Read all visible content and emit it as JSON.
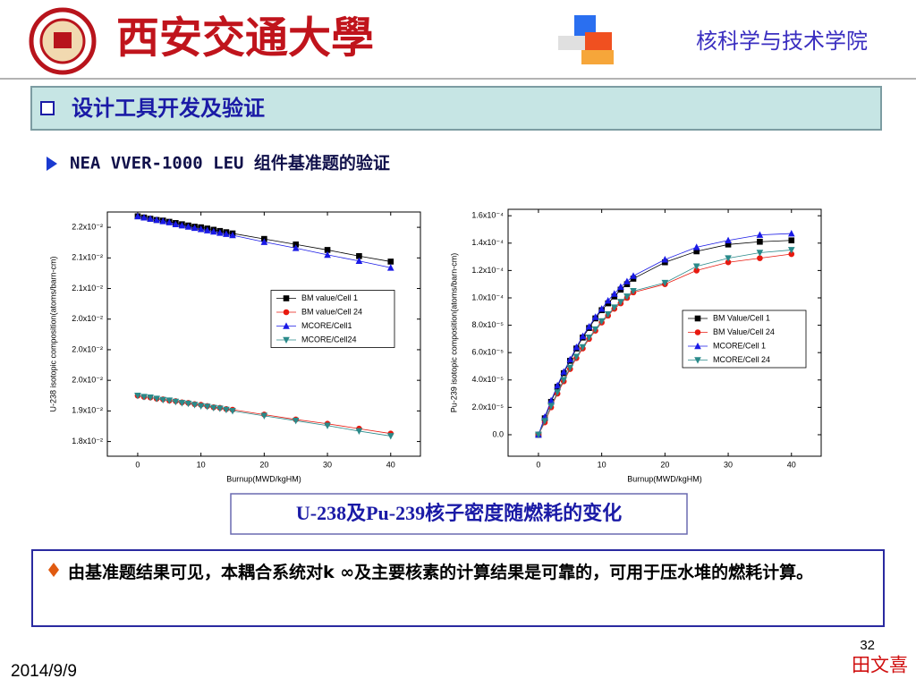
{
  "header": {
    "logo_text": "西安交通大學",
    "school": "核科学与技术学院"
  },
  "section": "设计工具开发及验证",
  "subtitle": "NEA VVER-1000 LEU 组件基准题的验证",
  "chart_data": [
    {
      "type": "line",
      "x_label": "Burnup(MWD/kgHM)",
      "y_label": "U-238 isotopic composition(atoms/barn-cm)",
      "x": [
        0,
        1,
        2,
        3,
        4,
        5,
        6,
        7,
        8,
        9,
        10,
        11,
        12,
        13,
        14,
        15,
        20,
        25,
        30,
        35,
        40
      ],
      "xlim": [
        -4.8,
        44.7
      ],
      "xticks": [
        0,
        10,
        20,
        30,
        40
      ],
      "ylim": [
        0.01826,
        0.02225
      ],
      "yticks": [
        {
          "value": 0.022,
          "label": "2.2x10⁻²"
        },
        {
          "value": 0.0215,
          "label": "2.1x10⁻²"
        },
        {
          "value": 0.021,
          "label": "2.1x10⁻²"
        },
        {
          "value": 0.0205,
          "label": "2.0x10⁻²"
        },
        {
          "value": 0.02,
          "label": "2.0x10⁻²"
        },
        {
          "value": 0.0195,
          "label": "2.0x10⁻²"
        },
        {
          "value": 0.019,
          "label": "1.9x10⁻²"
        },
        {
          "value": 0.0185,
          "label": "1.8x10⁻²"
        }
      ],
      "legend": "center right",
      "series": [
        {
          "name": "BM value/Cell 1",
          "color": "#000000",
          "marker": "square",
          "values": [
            0.02218,
            0.02216,
            0.02214,
            0.02212,
            0.02211,
            0.02209,
            0.02207,
            0.02205,
            0.02203,
            0.02201,
            0.022,
            0.02198,
            0.02196,
            0.02194,
            0.02192,
            0.0219,
            0.02181,
            0.02172,
            0.02163,
            0.02153,
            0.02144
          ]
        },
        {
          "name": "BM value/Cell 24",
          "color": "#e8190f",
          "marker": "circle",
          "values": [
            0.01925,
            0.01923,
            0.01922,
            0.0192,
            0.01919,
            0.01917,
            0.01916,
            0.01914,
            0.01913,
            0.01911,
            0.0191,
            0.01908,
            0.01906,
            0.01905,
            0.01903,
            0.01902,
            0.01894,
            0.01886,
            0.01879,
            0.01871,
            0.01863
          ]
        },
        {
          "name": "MCORE/Cell1",
          "color": "#1a1ae6",
          "marker": "triangle-up",
          "values": [
            0.02218,
            0.02216,
            0.02214,
            0.02212,
            0.0221,
            0.02208,
            0.02205,
            0.02203,
            0.02201,
            0.02199,
            0.02197,
            0.02195,
            0.02193,
            0.02191,
            0.02189,
            0.02187,
            0.02176,
            0.02166,
            0.02155,
            0.02145,
            0.02134
          ]
        },
        {
          "name": "MCORE/Cell24",
          "color": "#2a8a8a",
          "marker": "triangle-down",
          "values": [
            0.01925,
            0.01923,
            0.01922,
            0.0192,
            0.01918,
            0.01917,
            0.01915,
            0.01913,
            0.01912,
            0.0191,
            0.01908,
            0.01907,
            0.01905,
            0.01904,
            0.01902,
            0.019,
            0.01892,
            0.01884,
            0.01876,
            0.01867,
            0.01859
          ]
        }
      ]
    },
    {
      "type": "line",
      "x_label": "Burnup(MWD/kgHM)",
      "y_label": "Pu-239 isotopic composition(atoms/barn-cm)",
      "x": [
        0,
        1,
        2,
        3,
        4,
        5,
        6,
        7,
        8,
        9,
        10,
        11,
        12,
        13,
        14,
        15,
        20,
        25,
        30,
        35,
        40
      ],
      "xlim": [
        -4.8,
        44.7
      ],
      "xticks": [
        0,
        10,
        20,
        30,
        40
      ],
      "ylim": [
        -1.57e-05,
        0.0001647
      ],
      "yticks": [
        {
          "value": 0,
          "label": "0.0"
        },
        {
          "value": 2e-05,
          "label": "2.0x10⁻⁵"
        },
        {
          "value": 4e-05,
          "label": "4.0x10⁻⁵"
        },
        {
          "value": 6e-05,
          "label": "6.0x10⁻⁵"
        },
        {
          "value": 8e-05,
          "label": "8.0x10⁻⁵"
        },
        {
          "value": 0.0001,
          "label": "1.0x10⁻⁴"
        },
        {
          "value": 0.00012,
          "label": "1.2x10⁻⁴"
        },
        {
          "value": 0.00014,
          "label": "1.4x10⁻⁴"
        },
        {
          "value": 0.00016,
          "label": "1.6x10⁻⁴"
        }
      ],
      "legend": "lower right",
      "series": [
        {
          "name": "BM Value/Cell 1",
          "color": "#000000",
          "marker": "square",
          "values": [
            0,
            1.2e-05,
            2.4e-05,
            3.5e-05,
            4.5e-05,
            5.4e-05,
            6.3e-05,
            7.1e-05,
            7.8e-05,
            8.5e-05,
            9.1e-05,
            9.6e-05,
            0.000101,
            0.000106,
            0.00011,
            0.000114,
            0.000126,
            0.000134,
            0.000139,
            0.000141,
            0.000142
          ]
        },
        {
          "name": "BM Value/Cell 24",
          "color": "#e8190f",
          "marker": "circle",
          "values": [
            0,
            9e-06,
            2e-05,
            3e-05,
            3.9e-05,
            4.8e-05,
            5.6e-05,
            6.3e-05,
            7e-05,
            7.6e-05,
            8.2e-05,
            8.7e-05,
            9.2e-05,
            9.6e-05,
            0.0001,
            0.000104,
            0.00011,
            0.00012,
            0.000126,
            0.000129,
            0.000132
          ]
        },
        {
          "name": "MCORE/Cell 1",
          "color": "#1a1ae6",
          "marker": "triangle-up",
          "values": [
            0,
            1.3e-05,
            2.5e-05,
            3.6e-05,
            4.6e-05,
            5.5e-05,
            6.4e-05,
            7.2e-05,
            7.9e-05,
            8.6e-05,
            9.2e-05,
            9.8e-05,
            0.000103,
            0.000108,
            0.000112,
            0.000116,
            0.000128,
            0.000137,
            0.000142,
            0.000146,
            0.000147
          ]
        },
        {
          "name": "MCORE/Cell 24",
          "color": "#2a8a8a",
          "marker": "triangle-down",
          "values": [
            0,
            1e-05,
            2.1e-05,
            3.1e-05,
            4e-05,
            4.9e-05,
            5.7e-05,
            6.4e-05,
            7.1e-05,
            7.7e-05,
            8.3e-05,
            8.8e-05,
            9.3e-05,
            9.7e-05,
            0.000101,
            0.000105,
            0.000111,
            0.000123,
            0.000129,
            0.000133,
            0.000135
          ]
        }
      ]
    }
  ],
  "caption": "U-238及Pu-239核子密度随燃耗的变化",
  "note": "由基准题结果可见，本耦合系统对k ∞及主要核素的计算结果是可靠的，可用于压水堆的燃耗计算。",
  "footer": {
    "page": "32",
    "author": "田文喜",
    "date": "2014/9/9"
  }
}
